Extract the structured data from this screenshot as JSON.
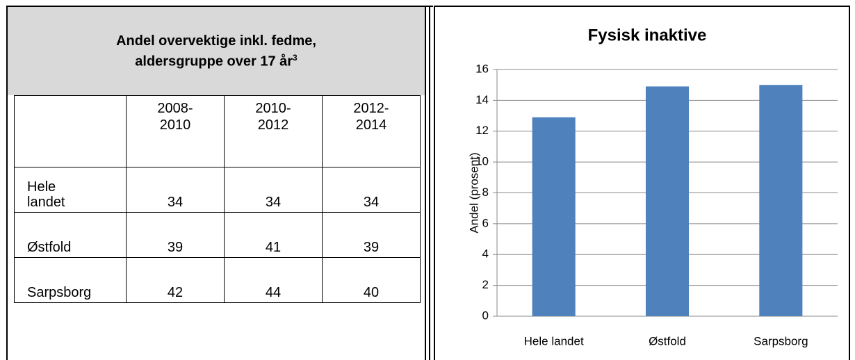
{
  "header": {
    "title_line1": "Andel overvektige inkl. fedme,",
    "title_line2": "aldersgruppe over 17 år",
    "footnote_mark": "3"
  },
  "table": {
    "columns": [
      [
        "2008-",
        "2010"
      ],
      [
        "2010-",
        "2012"
      ],
      [
        "2012-",
        "2014"
      ]
    ],
    "rows": [
      {
        "label": "Hele landet",
        "values": [
          34,
          34,
          34
        ]
      },
      {
        "label": "Østfold",
        "values": [
          39,
          41,
          39
        ]
      },
      {
        "label": "Sarpsborg",
        "values": [
          42,
          44,
          40
        ]
      }
    ]
  },
  "chart_data": {
    "type": "bar",
    "title": "Fysisk inaktive",
    "y_label": "Andel (prosent)",
    "categories": [
      "Hele landet",
      "Østfold",
      "Sarpsborg"
    ],
    "values": [
      12.9,
      14.9,
      15.0
    ],
    "color": "#4f81bd",
    "ylim": [
      0,
      16
    ],
    "yticks": [
      0,
      2,
      4,
      6,
      8,
      10,
      12,
      14,
      16
    ],
    "grid": true
  }
}
